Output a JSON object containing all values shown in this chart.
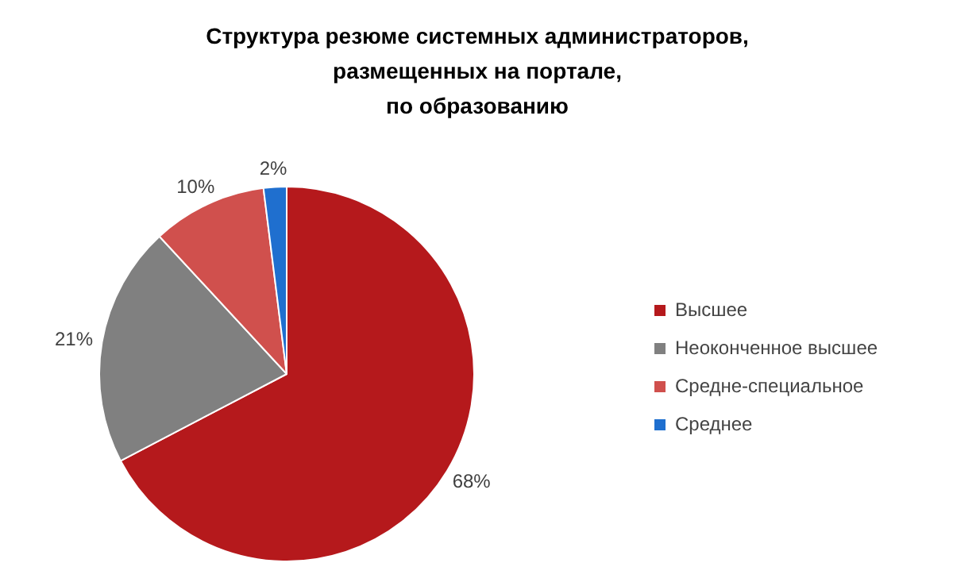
{
  "chart_data": {
    "type": "pie",
    "title": "Структура резюме системных администраторов,\nразмещенных на портале,\nпо образованию",
    "categories": [
      "Высшее",
      "Неоконченное высшее",
      "Средне-специальное",
      "Среднее"
    ],
    "values": [
      68,
      21,
      10,
      2
    ],
    "value_labels": [
      "68%",
      "21%",
      "10%",
      "2%"
    ],
    "colors": [
      "#b5191c",
      "#808080",
      "#d0504d",
      "#1f6fcf"
    ],
    "legend": "right"
  }
}
